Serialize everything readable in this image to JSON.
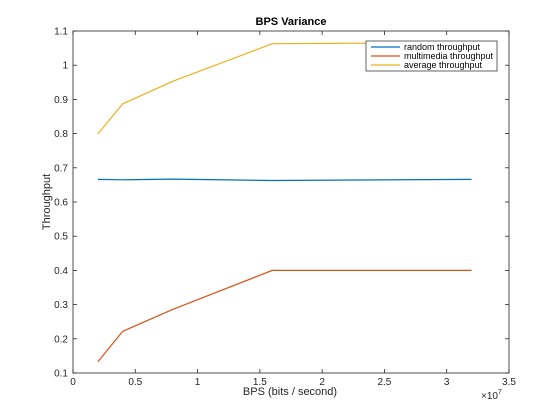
{
  "chart_data": {
    "type": "line",
    "title": "BPS Variance",
    "xlabel": "BPS (bits / second)",
    "ylabel": "Throughput",
    "x_exponent_label": "×10",
    "x_exponent_power": "7",
    "xlim": [
      0,
      35000000
    ],
    "ylim": [
      0.1,
      1.1
    ],
    "x_ticks": [
      0,
      5000000,
      10000000,
      15000000,
      20000000,
      25000000,
      30000000,
      35000000
    ],
    "x_tick_labels": [
      "0",
      "0.5",
      "1",
      "1.5",
      "2",
      "2.5",
      "3",
      "3.5"
    ],
    "y_ticks": [
      0.1,
      0.2,
      0.3,
      0.4,
      0.5,
      0.6,
      0.7,
      0.8,
      0.9,
      1.0,
      1.1
    ],
    "y_tick_labels": [
      "0.1",
      "0.2",
      "0.3",
      "0.4",
      "0.5",
      "0.6",
      "0.7",
      "0.8",
      "0.9",
      "1",
      "1.1"
    ],
    "grid": false,
    "legend_position": "top-right",
    "x": [
      2000000,
      4000000,
      8000000,
      16000000,
      32000000
    ],
    "series": [
      {
        "name": "random throughput",
        "color": "#0072BD",
        "values": [
          0.666,
          0.665,
          0.667,
          0.663,
          0.666
        ]
      },
      {
        "name": "multimedia throughput",
        "color": "#D95319",
        "values": [
          0.133,
          0.222,
          0.286,
          0.4,
          0.4
        ]
      },
      {
        "name": "average throughput",
        "color": "#EDB120",
        "values": [
          0.799,
          0.887,
          0.953,
          1.063,
          1.066
        ]
      }
    ]
  }
}
